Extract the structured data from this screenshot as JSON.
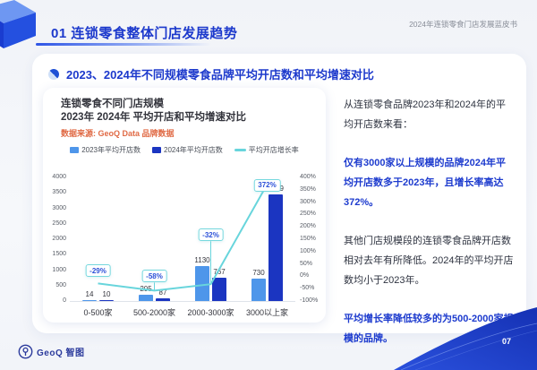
{
  "header": {
    "section_title": "01 连锁零食整体门店发展趋势",
    "booklet": "2024年连锁零食门店发展蓝皮书"
  },
  "section": {
    "title": "2023、2024年不同规模零食品牌平均开店数和平均增速对比"
  },
  "chart_card": {
    "title_line1": "连锁零食不同门店规模",
    "title_line2": "2023年 2024年 平均开店和平均增速对比",
    "source": "数据来源: GeoQ Data 品牌数据"
  },
  "chart_data": {
    "type": "bar",
    "title": "连锁零食不同门店规模 2023年 2024年 平均开店和平均增速对比",
    "categories": [
      "0-500家",
      "500-2000家",
      "2000-3000家",
      "3000以上家"
    ],
    "series": [
      {
        "name": "2023年平均开店数",
        "type": "bar",
        "color": "#4e96ea",
        "values": [
          14,
          205,
          1130,
          730
        ]
      },
      {
        "name": "2024年平均开店数",
        "type": "bar",
        "color": "#1b35c1",
        "values": [
          10,
          87,
          767,
          3449
        ]
      },
      {
        "name": "平均开店增长率",
        "type": "line",
        "color": "#68d5dc",
        "values_pct": [
          -29,
          -58,
          -32,
          372
        ],
        "point_labels": [
          "-29%",
          "-58%",
          "-32%",
          "372%"
        ]
      }
    ],
    "left_axis": {
      "min": 0,
      "max": 4000,
      "step": 500
    },
    "right_axis": {
      "min": -100,
      "max": 400,
      "step": 50,
      "suffix": "%"
    },
    "grid": false,
    "legend_position": "top"
  },
  "insights": {
    "p1": "从连锁零食品牌2023年和2024年的平均开店数来看：",
    "p2": "仅有3000家以上规模的品牌2024年平均开店数多于2023年，且增长率高达372%。",
    "p3": "其他门店规模段的连锁零食品牌开店数相对去年有所降低。2024年的平均开店数均小于2023年。",
    "p4": "平均增长率降低较多的为500-2000家规模的品牌。"
  },
  "footer": {
    "logo_text": "GeoQ 智图",
    "page_no": "07"
  },
  "colors": {
    "accent_blue": "#1c39cc",
    "bar_2023": "#4e96ea",
    "bar_2024": "#1b35c1",
    "growth_line": "#68d5dc",
    "source_orange": "#e06a45"
  },
  "icons": [
    "cube-3d-icon",
    "sphere-dot-icon",
    "map-pin-logo-icon",
    "swoosh-shape"
  ]
}
